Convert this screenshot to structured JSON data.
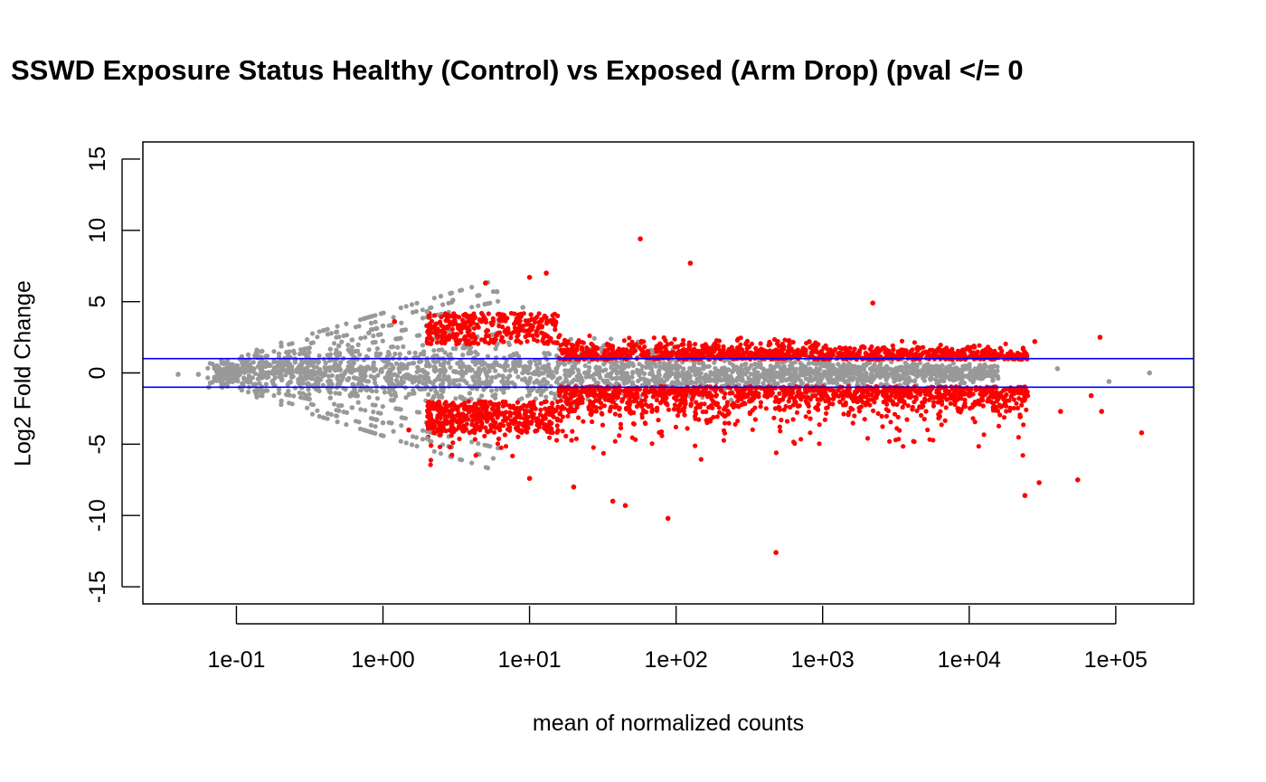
{
  "chart_data": {
    "type": "scatter",
    "title": "SSWD Exposure Status Healthy (Control) vs Exposed (Arm Drop) (pval </= 0",
    "xlabel": "mean of normalized counts",
    "ylabel": "Log2 Fold Change",
    "x_scale": "log10",
    "xlim": [
      0.023,
      340000
    ],
    "ylim": [
      -16.2,
      16.2
    ],
    "x_ticks": [
      0.1,
      1,
      10,
      100,
      1000,
      10000,
      100000
    ],
    "x_tick_labels": [
      "1e-01",
      "1e+00",
      "1e+01",
      "1e+02",
      "1e+03",
      "1e+04",
      "1e+05"
    ],
    "y_ticks": [
      -15,
      -10,
      -5,
      0,
      5,
      10,
      15
    ],
    "y_tick_labels": [
      "-15",
      "-10",
      "-5",
      "0",
      "5",
      "10",
      "15"
    ],
    "hlines": [
      1,
      -1
    ],
    "hline_color": "#0000ff",
    "grid": false,
    "series": [
      {
        "color": "#999999",
        "points": [
          {
            "x": 0.04,
            "y": -0.1
          },
          {
            "x": 0.055,
            "y": -0.1
          },
          {
            "x": 0.065,
            "y": -1.0
          },
          {
            "x": 0.08,
            "y": -1.0
          },
          {
            "x": 0.1,
            "y": 0.3
          },
          {
            "x": 0.13,
            "y": 0.3
          },
          {
            "x": 0.15,
            "y": -1.4
          },
          {
            "x": 0.2,
            "y": 0.7
          },
          {
            "x": 0.3,
            "y": 1.2
          },
          {
            "x": 0.3,
            "y": -1.6
          },
          {
            "x": 0.5,
            "y": 1.9
          },
          {
            "x": 0.5,
            "y": -2.3
          },
          {
            "x": 0.8,
            "y": 2.8
          },
          {
            "x": 1.0,
            "y": 3.3
          },
          {
            "x": 1.0,
            "y": -3.5
          },
          {
            "x": 2.0,
            "y": 4.3
          },
          {
            "x": 3.0,
            "y": 5.1
          },
          {
            "x": 6.0,
            "y": 5.7
          },
          {
            "x": 9.0,
            "y": 4.6
          },
          {
            "x": 2.0,
            "y": -4.6
          },
          {
            "x": 10.0,
            "y": 0.4
          },
          {
            "x": 100.0,
            "y": -0.3
          },
          {
            "x": 5000.0,
            "y": 0.5
          },
          {
            "x": 10000.0,
            "y": 0.4
          },
          {
            "x": 12000.0,
            "y": -0.4
          },
          {
            "x": 40000.0,
            "y": 0.3
          },
          {
            "x": 90000.0,
            "y": -0.6
          },
          {
            "x": 170000.0,
            "y": 0.0
          }
        ]
      },
      {
        "color": "#ff0000",
        "points": [
          {
            "x": 1.2,
            "y": 3.6
          },
          {
            "x": 1.5,
            "y": -4.0
          },
          {
            "x": 5.0,
            "y": 6.3
          },
          {
            "x": 10.0,
            "y": 6.7
          },
          {
            "x": 13.0,
            "y": 7.0
          },
          {
            "x": 10.0,
            "y": -7.4
          },
          {
            "x": 20.0,
            "y": -8.0
          },
          {
            "x": 37.0,
            "y": -9.0
          },
          {
            "x": 45.0,
            "y": -9.3
          },
          {
            "x": 57.0,
            "y": 9.4
          },
          {
            "x": 88.0,
            "y": -10.2
          },
          {
            "x": 125.0,
            "y": 7.7
          },
          {
            "x": 480.0,
            "y": -12.6
          },
          {
            "x": 2200.0,
            "y": 4.9
          },
          {
            "x": 24000.0,
            "y": -8.6
          },
          {
            "x": 30000.0,
            "y": -7.7
          },
          {
            "x": 28000.0,
            "y": 2.2
          },
          {
            "x": 42000.0,
            "y": -2.7
          },
          {
            "x": 55000.0,
            "y": -7.5
          },
          {
            "x": 68000.0,
            "y": -1.6
          },
          {
            "x": 78000.0,
            "y": 2.5
          },
          {
            "x": 80000.0,
            "y": -2.7
          },
          {
            "x": 150000.0,
            "y": -4.2
          }
        ]
      }
    ]
  }
}
